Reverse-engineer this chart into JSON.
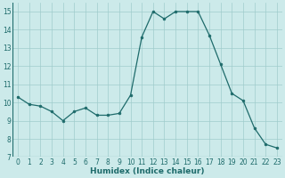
{
  "x": [
    0,
    1,
    2,
    3,
    4,
    5,
    6,
    7,
    8,
    9,
    10,
    11,
    12,
    13,
    14,
    15,
    16,
    17,
    18,
    19,
    20,
    21,
    22,
    23
  ],
  "y": [
    10.3,
    9.9,
    9.8,
    9.5,
    9.0,
    9.5,
    9.7,
    9.3,
    9.3,
    9.4,
    10.4,
    13.6,
    15.0,
    14.6,
    15.0,
    15.0,
    15.0,
    13.7,
    12.1,
    10.5,
    10.1,
    8.6,
    7.7,
    7.5
  ],
  "xlabel": "Humidex (Indice chaleur)",
  "ylim": [
    7,
    15.5
  ],
  "xlim": [
    -0.5,
    23.5
  ],
  "yticks": [
    7,
    8,
    9,
    10,
    11,
    12,
    13,
    14,
    15
  ],
  "xticks": [
    0,
    1,
    2,
    3,
    4,
    5,
    6,
    7,
    8,
    9,
    10,
    11,
    12,
    13,
    14,
    15,
    16,
    17,
    18,
    19,
    20,
    21,
    22,
    23
  ],
  "xtick_labels": [
    "0",
    "1",
    "2",
    "3",
    "4",
    "5",
    "6",
    "7",
    "8",
    "9",
    "10",
    "11",
    "12",
    "13",
    "14",
    "15",
    "16",
    "17",
    "18",
    "19",
    "20",
    "21",
    "22",
    "23"
  ],
  "line_color": "#1e6b6b",
  "marker_color": "#1e6b6b",
  "bg_color": "#cceaea",
  "grid_color": "#a0cccc",
  "tick_color": "#1e6b6b",
  "label_fontsize": 5.5,
  "xlabel_fontsize": 6.5
}
